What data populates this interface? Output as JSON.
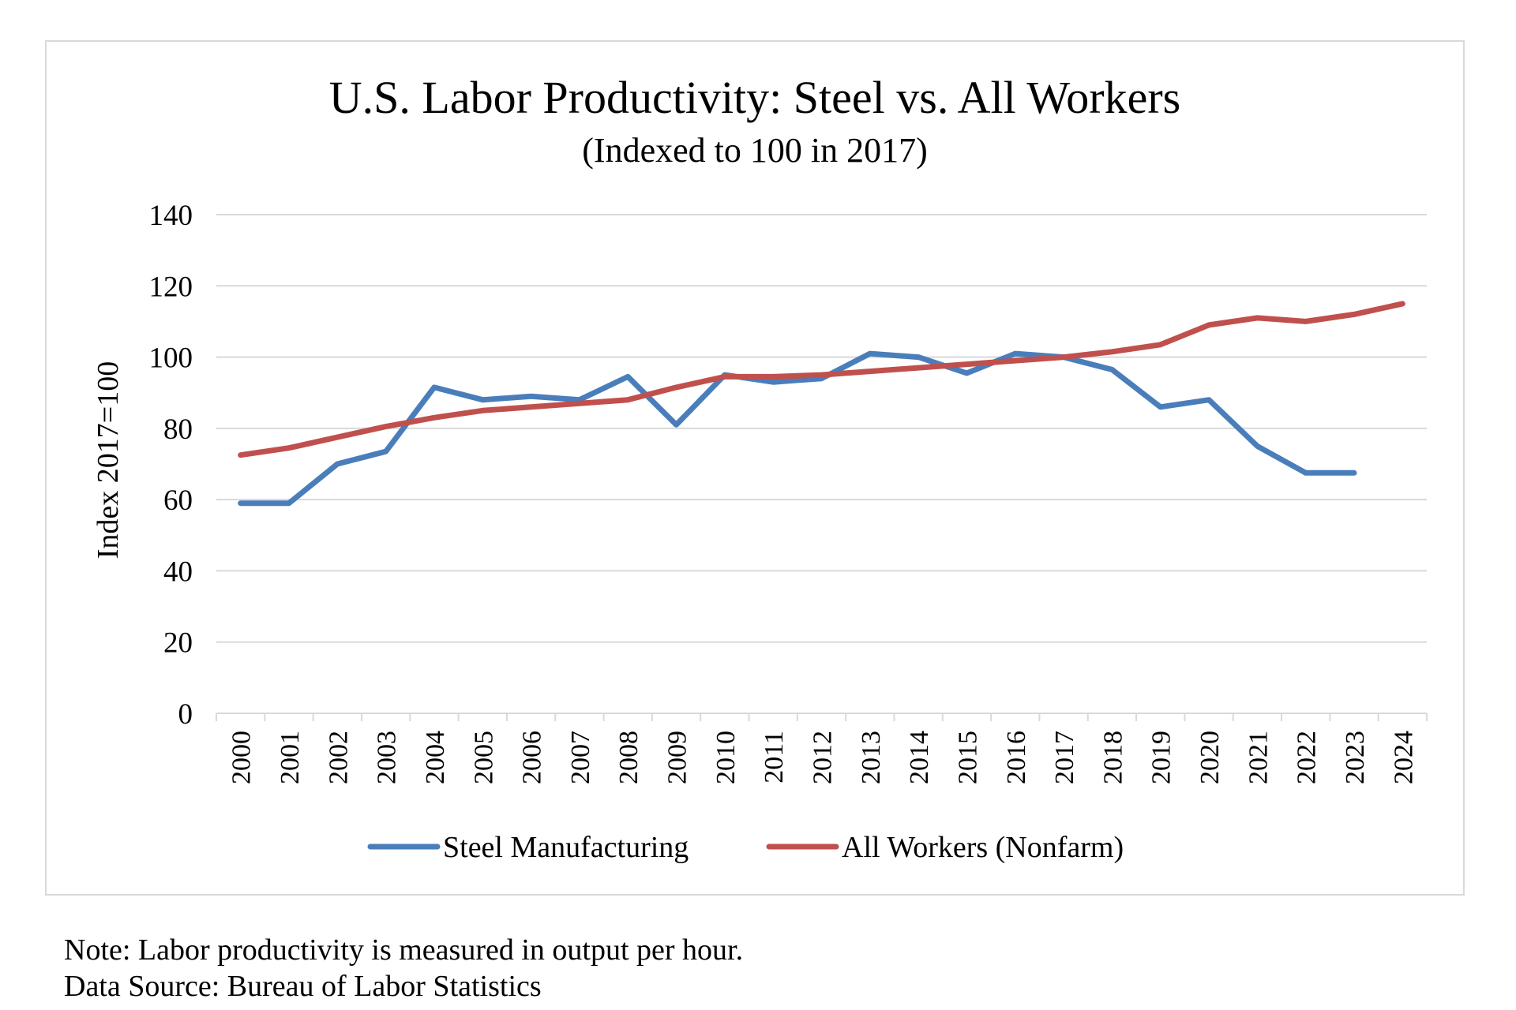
{
  "chart_data": {
    "type": "line",
    "title": "U.S. Labor Productivity: Steel vs. All Workers",
    "subtitle": "(Indexed to 100 in 2017)",
    "xlabel": "",
    "ylabel": "Index 2017=100",
    "ylim": [
      0,
      140
    ],
    "yticks": [
      0,
      20,
      40,
      60,
      80,
      100,
      120,
      140
    ],
    "grid": true,
    "legend_position": "bottom",
    "categories": [
      "2000",
      "2001",
      "2002",
      "2003",
      "2004",
      "2005",
      "2006",
      "2007",
      "2008",
      "2009",
      "2010",
      "2011",
      "2012",
      "2013",
      "2014",
      "2015",
      "2016",
      "2017",
      "2018",
      "2019",
      "2020",
      "2021",
      "2022",
      "2023",
      "2024"
    ],
    "series": [
      {
        "name": "Steel Manufacturing",
        "color": "#4a7ebb",
        "values": [
          59,
          59,
          70,
          73.5,
          91.5,
          88,
          89,
          88,
          94.5,
          81,
          95,
          93,
          94,
          101,
          100,
          95.5,
          101,
          100,
          96.5,
          86,
          88,
          75,
          67.5,
          67.5,
          null
        ]
      },
      {
        "name": "All Workers (Nonfarm)",
        "color": "#c0504d",
        "values": [
          72.5,
          74.5,
          77.5,
          80.5,
          83,
          85,
          86,
          87,
          88,
          91.5,
          94.5,
          94.5,
          95,
          96,
          97,
          98,
          99,
          100,
          101.5,
          103.5,
          109,
          111,
          110,
          112,
          115
        ]
      }
    ]
  },
  "notes": {
    "line1": "Note: Labor productivity is measured in output per hour.",
    "line2": "Data Source: Bureau of Labor Statistics"
  }
}
